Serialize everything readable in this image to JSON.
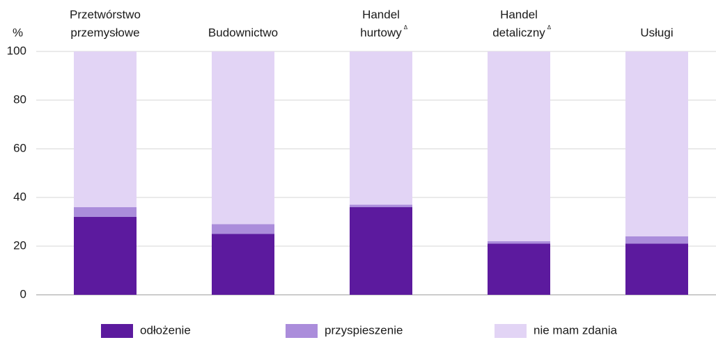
{
  "chart_data": {
    "type": "stacked_bar",
    "y_label": "%",
    "categories": [
      [
        "Przetwórstwo",
        "przemysłowe"
      ],
      [
        "Budownictwo"
      ],
      [
        "Handel",
        "hurtowy"
      ],
      [
        "Handel",
        "detaliczny"
      ],
      [
        "Usługi"
      ]
    ],
    "category_notes": [
      null,
      null,
      "Δ",
      "Δ",
      null
    ],
    "series": [
      {
        "name": "odłożenie",
        "color": "#5c1a9e",
        "values": [
          32,
          25,
          36,
          21,
          21
        ]
      },
      {
        "name": "przyspieszenie",
        "color": "#ab8ddb",
        "values": [
          4,
          4,
          1,
          1,
          3
        ]
      },
      {
        "name": "nie mam zdania",
        "color": "#e2d4f5",
        "values": [
          64,
          71,
          63,
          78,
          76
        ]
      }
    ],
    "ylim": [
      0,
      100
    ],
    "yticks": [
      0,
      20,
      40,
      60,
      80,
      100
    ],
    "grid": true
  }
}
